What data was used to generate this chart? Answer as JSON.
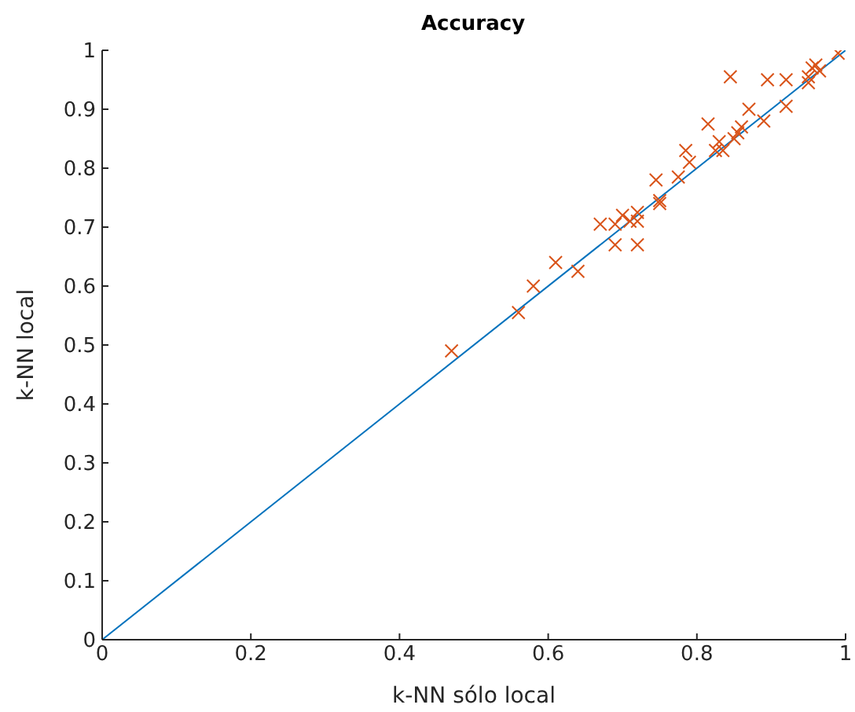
{
  "chart_data": {
    "type": "scatter",
    "title": "Accuracy",
    "xlabel": "k-NN sólo local",
    "ylabel": "k-NN local",
    "xlim": [
      0,
      1
    ],
    "ylim": [
      0,
      1
    ],
    "xticks": [
      0,
      0.2,
      0.4,
      0.6,
      0.8,
      1
    ],
    "yticks": [
      0,
      0.1,
      0.2,
      0.3,
      0.4,
      0.5,
      0.6,
      0.7,
      0.8,
      0.9,
      1
    ],
    "grid": false,
    "legend": false,
    "series": [
      {
        "type": "line",
        "color": "#0072bd",
        "x": [
          0,
          1
        ],
        "values": [
          0,
          1
        ],
        "marker": "none"
      },
      {
        "type": "scatter",
        "color": "#d95319",
        "marker": "cross",
        "x": [
          0.47,
          0.56,
          0.58,
          0.61,
          0.64,
          0.67,
          0.69,
          0.69,
          0.7,
          0.71,
          0.72,
          0.72,
          0.72,
          0.745,
          0.75,
          0.75,
          0.775,
          0.785,
          0.79,
          0.815,
          0.825,
          0.83,
          0.835,
          0.845,
          0.85,
          0.855,
          0.86,
          0.87,
          0.89,
          0.895,
          0.92,
          0.92,
          0.95,
          0.95,
          0.955,
          0.96,
          0.965,
          0.99
        ],
        "values": [
          0.49,
          0.555,
          0.6,
          0.64,
          0.625,
          0.705,
          0.705,
          0.67,
          0.72,
          0.71,
          0.67,
          0.71,
          0.725,
          0.78,
          0.74,
          0.745,
          0.785,
          0.83,
          0.81,
          0.875,
          0.83,
          0.845,
          0.83,
          0.955,
          0.85,
          0.86,
          0.87,
          0.9,
          0.88,
          0.95,
          0.95,
          0.905,
          0.945,
          0.955,
          0.97,
          0.975,
          0.965,
          0.995
        ]
      }
    ]
  }
}
